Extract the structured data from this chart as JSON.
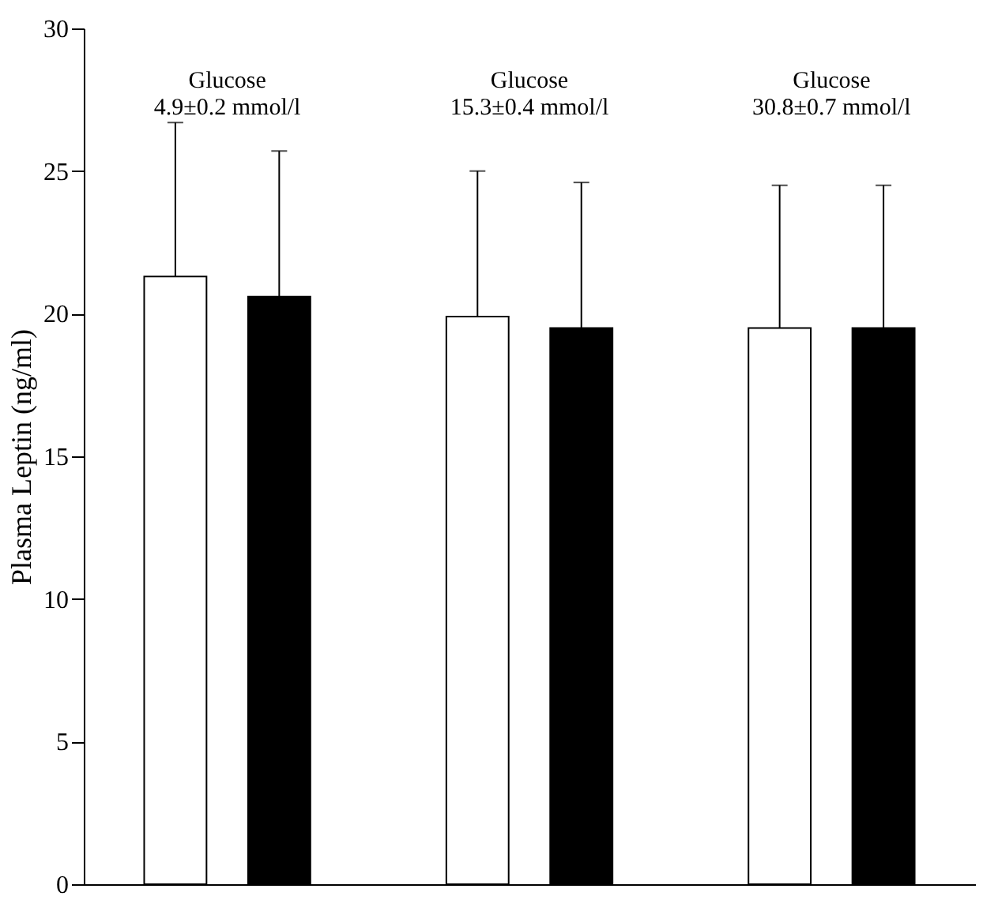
{
  "chart_data": {
    "type": "bar",
    "ylabel": "Plasma Leptin (ng/ml)",
    "categories": [
      "Glucose\n4.9±0.2 mmol/l",
      "Glucose\n15.3±0.4 mmol/l",
      "Glucose\n30.8±0.7 mmol/l"
    ],
    "series": [
      {
        "color": "#ffffff",
        "values": [
          21.3,
          19.9,
          19.5
        ],
        "errors": [
          [
            21.3,
            26.7
          ],
          [
            19.9,
            25.0
          ],
          [
            19.5,
            24.5
          ]
        ]
      },
      {
        "color": "#000000",
        "values": [
          20.6,
          19.5,
          19.5
        ],
        "errors": [
          [
            20.6,
            25.7
          ],
          [
            19.5,
            24.6
          ],
          [
            19.5,
            24.5
          ]
        ]
      }
    ],
    "ylim": [
      0,
      30
    ],
    "yticks": [
      0,
      5,
      10,
      15,
      20,
      25,
      30
    ],
    "grid": false,
    "legend": false
  }
}
